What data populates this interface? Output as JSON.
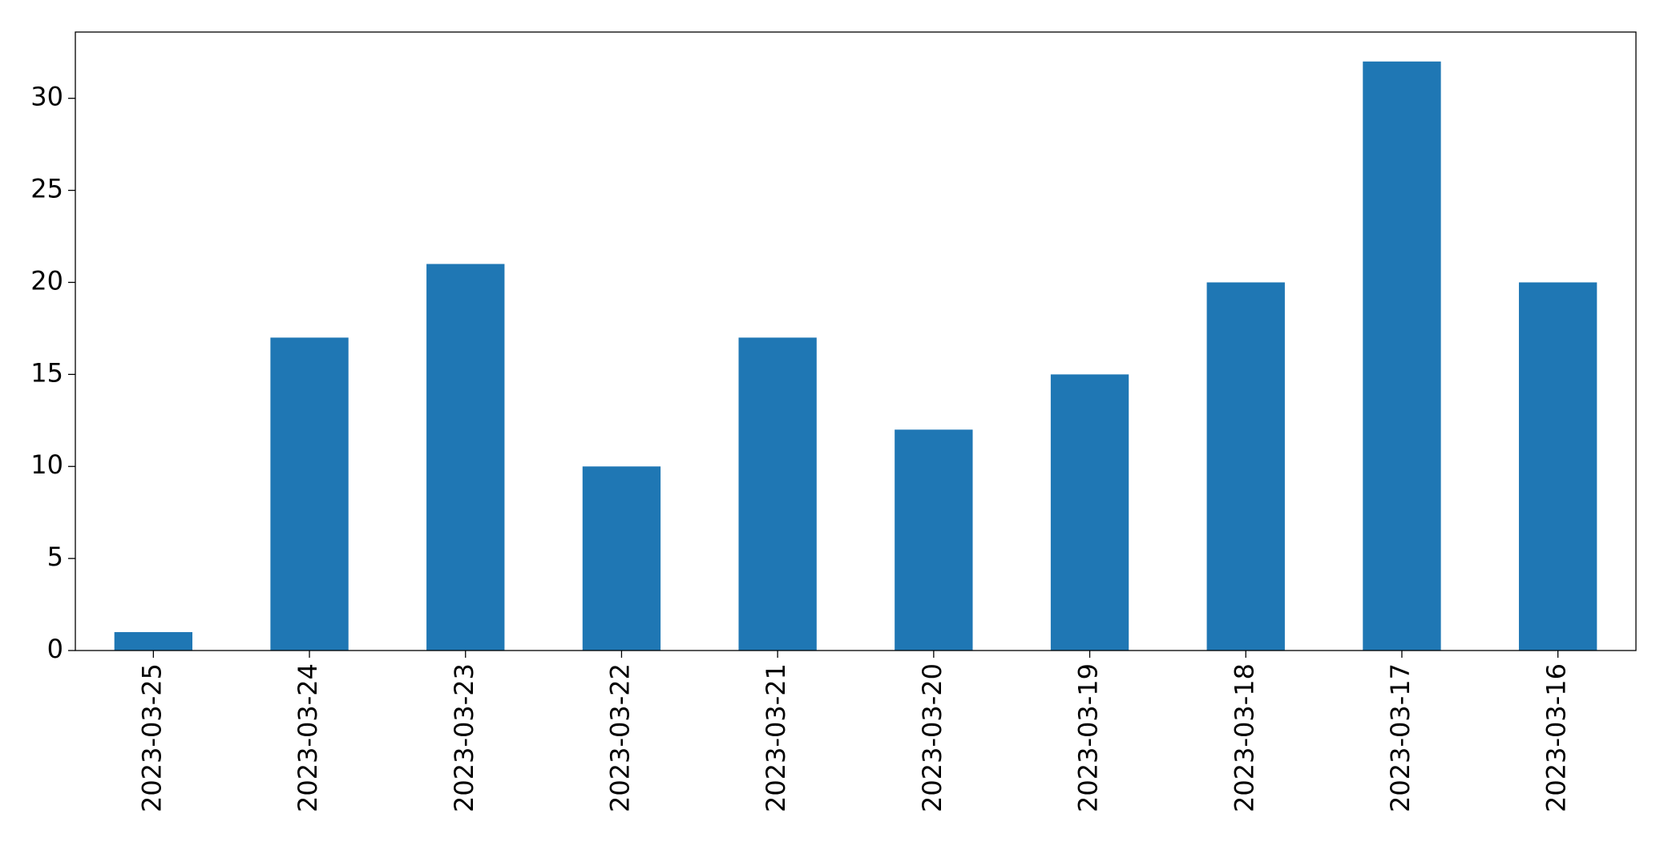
{
  "chart_data": {
    "type": "bar",
    "categories": [
      "2023-03-25",
      "2023-03-24",
      "2023-03-23",
      "2023-03-22",
      "2023-03-21",
      "2023-03-20",
      "2023-03-19",
      "2023-03-18",
      "2023-03-17",
      "2023-03-16"
    ],
    "values": [
      1,
      17,
      21,
      10,
      17,
      12,
      15,
      20,
      32,
      20
    ],
    "color": "#1f77b4",
    "ylim": [
      0,
      33.6
    ],
    "yticks": [
      0,
      5,
      10,
      15,
      20,
      25,
      30
    ],
    "grid": false
  }
}
